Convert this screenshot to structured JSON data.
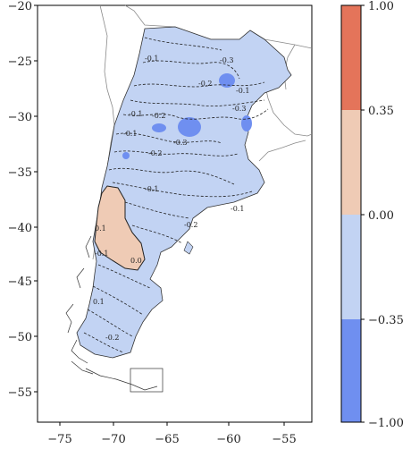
{
  "map": {
    "x_ticks": [
      "−75",
      "−70",
      "−65",
      "−60",
      "−55"
    ],
    "y_ticks": [
      "−20",
      "−25",
      "−30",
      "−35",
      "−40",
      "−45",
      "−50",
      "−55"
    ],
    "contour_labels": [
      "-0.1",
      "-0.3",
      "-0.2",
      "-0.1",
      "-0.3",
      "-0.1",
      "-0.2",
      "-0.3",
      "-0.1",
      "-0.2",
      "-0.1",
      "0.1",
      "0.0",
      "-0.1",
      "-0.1",
      "-0.2",
      "-0.2",
      "0.1"
    ],
    "colors": {
      "very_negative": "#6f8ff0",
      "negative": "#c2d3f3",
      "positive": "#efcbb5",
      "very_positive": "#e4745a",
      "border": "#8a8a8a",
      "coast": "#333333"
    }
  },
  "colorbar": {
    "labels": [
      "1.00",
      "0.35",
      "0.00",
      "−0.35",
      "−1.00"
    ],
    "bins": [
      {
        "min": 0.35,
        "max": 1.0,
        "color": "#e4745a"
      },
      {
        "min": 0.0,
        "max": 0.35,
        "color": "#efcbb5"
      },
      {
        "min": -0.35,
        "max": 0.0,
        "color": "#c2d3f3"
      },
      {
        "min": -1.0,
        "max": -0.35,
        "color": "#6f8ff0"
      }
    ]
  }
}
